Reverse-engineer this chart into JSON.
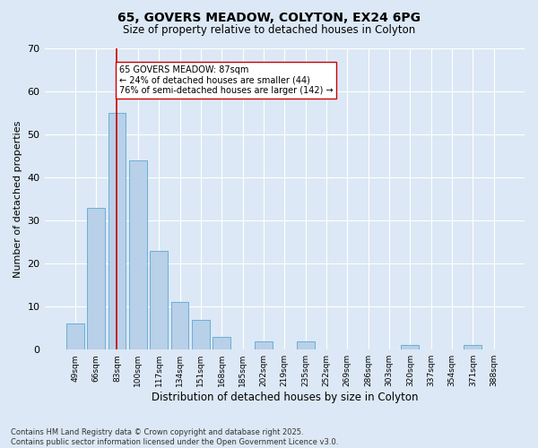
{
  "title1": "65, GOVERS MEADOW, COLYTON, EX24 6PG",
  "title2": "Size of property relative to detached houses in Colyton",
  "xlabel": "Distribution of detached houses by size in Colyton",
  "ylabel": "Number of detached properties",
  "footnote": "Contains HM Land Registry data © Crown copyright and database right 2025.\nContains public sector information licensed under the Open Government Licence v3.0.",
  "categories": [
    "49sqm",
    "66sqm",
    "83sqm",
    "100sqm",
    "117sqm",
    "134sqm",
    "151sqm",
    "168sqm",
    "185sqm",
    "202sqm",
    "219sqm",
    "235sqm",
    "252sqm",
    "269sqm",
    "286sqm",
    "303sqm",
    "320sqm",
    "337sqm",
    "354sqm",
    "371sqm",
    "388sqm"
  ],
  "values": [
    6,
    33,
    55,
    44,
    23,
    11,
    7,
    3,
    0,
    2,
    0,
    2,
    0,
    0,
    0,
    0,
    1,
    0,
    0,
    1,
    0
  ],
  "bar_color": "#b8d0e8",
  "bar_edge_color": "#6baed6",
  "background_color": "#dce8f5",
  "grid_color": "#ffffff",
  "vline_x": 2,
  "vline_color": "#cc0000",
  "annotation_text": "65 GOVERS MEADOW: 87sqm\n← 24% of detached houses are smaller (44)\n76% of semi-detached houses are larger (142) →",
  "annotation_box_color": "#ffffff",
  "annotation_box_edge": "#cc0000",
  "ylim": [
    0,
    70
  ],
  "yticks": [
    0,
    10,
    20,
    30,
    40,
    50,
    60,
    70
  ],
  "vline_x_val": 2.0
}
